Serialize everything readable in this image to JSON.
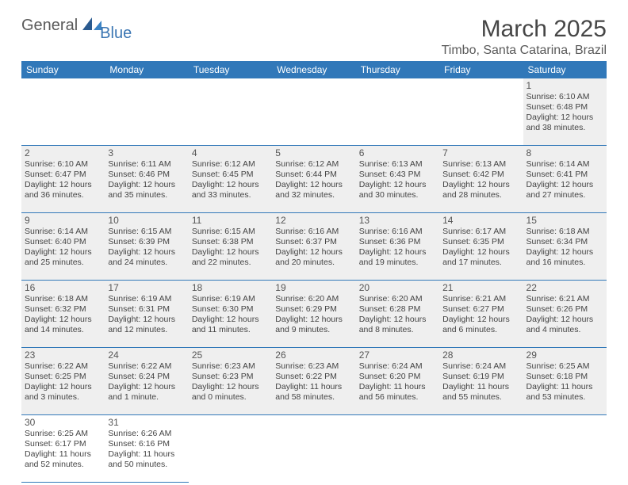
{
  "logo": {
    "general": "General",
    "blue": "Blue"
  },
  "title": "March 2025",
  "location": "Timbo, Santa Catarina, Brazil",
  "colors": {
    "header_bg": "#3178b9",
    "header_text": "#ffffff",
    "shaded_bg": "#efefef",
    "border": "#3178b9",
    "title_text": "#464646",
    "body_text": "#444444"
  },
  "dayHeaders": [
    "Sunday",
    "Monday",
    "Tuesday",
    "Wednesday",
    "Thursday",
    "Friday",
    "Saturday"
  ],
  "weeks": [
    [
      {
        "empty": true
      },
      {
        "empty": true
      },
      {
        "empty": true
      },
      {
        "empty": true
      },
      {
        "empty": true
      },
      {
        "empty": true
      },
      {
        "day": "1",
        "shaded": true,
        "sunrise": "Sunrise: 6:10 AM",
        "sunset": "Sunset: 6:48 PM",
        "daylight": "Daylight: 12 hours and 38 minutes."
      }
    ],
    [
      {
        "day": "2",
        "shaded": true,
        "sunrise": "Sunrise: 6:10 AM",
        "sunset": "Sunset: 6:47 PM",
        "daylight": "Daylight: 12 hours and 36 minutes."
      },
      {
        "day": "3",
        "shaded": true,
        "sunrise": "Sunrise: 6:11 AM",
        "sunset": "Sunset: 6:46 PM",
        "daylight": "Daylight: 12 hours and 35 minutes."
      },
      {
        "day": "4",
        "shaded": true,
        "sunrise": "Sunrise: 6:12 AM",
        "sunset": "Sunset: 6:45 PM",
        "daylight": "Daylight: 12 hours and 33 minutes."
      },
      {
        "day": "5",
        "shaded": true,
        "sunrise": "Sunrise: 6:12 AM",
        "sunset": "Sunset: 6:44 PM",
        "daylight": "Daylight: 12 hours and 32 minutes."
      },
      {
        "day": "6",
        "shaded": true,
        "sunrise": "Sunrise: 6:13 AM",
        "sunset": "Sunset: 6:43 PM",
        "daylight": "Daylight: 12 hours and 30 minutes."
      },
      {
        "day": "7",
        "shaded": true,
        "sunrise": "Sunrise: 6:13 AM",
        "sunset": "Sunset: 6:42 PM",
        "daylight": "Daylight: 12 hours and 28 minutes."
      },
      {
        "day": "8",
        "shaded": true,
        "sunrise": "Sunrise: 6:14 AM",
        "sunset": "Sunset: 6:41 PM",
        "daylight": "Daylight: 12 hours and 27 minutes."
      }
    ],
    [
      {
        "day": "9",
        "shaded": true,
        "sunrise": "Sunrise: 6:14 AM",
        "sunset": "Sunset: 6:40 PM",
        "daylight": "Daylight: 12 hours and 25 minutes."
      },
      {
        "day": "10",
        "shaded": true,
        "sunrise": "Sunrise: 6:15 AM",
        "sunset": "Sunset: 6:39 PM",
        "daylight": "Daylight: 12 hours and 24 minutes."
      },
      {
        "day": "11",
        "shaded": true,
        "sunrise": "Sunrise: 6:15 AM",
        "sunset": "Sunset: 6:38 PM",
        "daylight": "Daylight: 12 hours and 22 minutes."
      },
      {
        "day": "12",
        "shaded": true,
        "sunrise": "Sunrise: 6:16 AM",
        "sunset": "Sunset: 6:37 PM",
        "daylight": "Daylight: 12 hours and 20 minutes."
      },
      {
        "day": "13",
        "shaded": true,
        "sunrise": "Sunrise: 6:16 AM",
        "sunset": "Sunset: 6:36 PM",
        "daylight": "Daylight: 12 hours and 19 minutes."
      },
      {
        "day": "14",
        "shaded": true,
        "sunrise": "Sunrise: 6:17 AM",
        "sunset": "Sunset: 6:35 PM",
        "daylight": "Daylight: 12 hours and 17 minutes."
      },
      {
        "day": "15",
        "shaded": true,
        "sunrise": "Sunrise: 6:18 AM",
        "sunset": "Sunset: 6:34 PM",
        "daylight": "Daylight: 12 hours and 16 minutes."
      }
    ],
    [
      {
        "day": "16",
        "shaded": true,
        "sunrise": "Sunrise: 6:18 AM",
        "sunset": "Sunset: 6:32 PM",
        "daylight": "Daylight: 12 hours and 14 minutes."
      },
      {
        "day": "17",
        "shaded": true,
        "sunrise": "Sunrise: 6:19 AM",
        "sunset": "Sunset: 6:31 PM",
        "daylight": "Daylight: 12 hours and 12 minutes."
      },
      {
        "day": "18",
        "shaded": true,
        "sunrise": "Sunrise: 6:19 AM",
        "sunset": "Sunset: 6:30 PM",
        "daylight": "Daylight: 12 hours and 11 minutes."
      },
      {
        "day": "19",
        "shaded": true,
        "sunrise": "Sunrise: 6:20 AM",
        "sunset": "Sunset: 6:29 PM",
        "daylight": "Daylight: 12 hours and 9 minutes."
      },
      {
        "day": "20",
        "shaded": true,
        "sunrise": "Sunrise: 6:20 AM",
        "sunset": "Sunset: 6:28 PM",
        "daylight": "Daylight: 12 hours and 8 minutes."
      },
      {
        "day": "21",
        "shaded": true,
        "sunrise": "Sunrise: 6:21 AM",
        "sunset": "Sunset: 6:27 PM",
        "daylight": "Daylight: 12 hours and 6 minutes."
      },
      {
        "day": "22",
        "shaded": true,
        "sunrise": "Sunrise: 6:21 AM",
        "sunset": "Sunset: 6:26 PM",
        "daylight": "Daylight: 12 hours and 4 minutes."
      }
    ],
    [
      {
        "day": "23",
        "shaded": true,
        "sunrise": "Sunrise: 6:22 AM",
        "sunset": "Sunset: 6:25 PM",
        "daylight": "Daylight: 12 hours and 3 minutes."
      },
      {
        "day": "24",
        "shaded": true,
        "sunrise": "Sunrise: 6:22 AM",
        "sunset": "Sunset: 6:24 PM",
        "daylight": "Daylight: 12 hours and 1 minute."
      },
      {
        "day": "25",
        "shaded": true,
        "sunrise": "Sunrise: 6:23 AM",
        "sunset": "Sunset: 6:23 PM",
        "daylight": "Daylight: 12 hours and 0 minutes."
      },
      {
        "day": "26",
        "shaded": true,
        "sunrise": "Sunrise: 6:23 AM",
        "sunset": "Sunset: 6:22 PM",
        "daylight": "Daylight: 11 hours and 58 minutes."
      },
      {
        "day": "27",
        "shaded": true,
        "sunrise": "Sunrise: 6:24 AM",
        "sunset": "Sunset: 6:20 PM",
        "daylight": "Daylight: 11 hours and 56 minutes."
      },
      {
        "day": "28",
        "shaded": true,
        "sunrise": "Sunrise: 6:24 AM",
        "sunset": "Sunset: 6:19 PM",
        "daylight": "Daylight: 11 hours and 55 minutes."
      },
      {
        "day": "29",
        "shaded": true,
        "sunrise": "Sunrise: 6:25 AM",
        "sunset": "Sunset: 6:18 PM",
        "daylight": "Daylight: 11 hours and 53 minutes."
      }
    ],
    [
      {
        "day": "30",
        "shaded": false,
        "sunrise": "Sunrise: 6:25 AM",
        "sunset": "Sunset: 6:17 PM",
        "daylight": "Daylight: 11 hours and 52 minutes."
      },
      {
        "day": "31",
        "shaded": false,
        "sunrise": "Sunrise: 6:26 AM",
        "sunset": "Sunset: 6:16 PM",
        "daylight": "Daylight: 11 hours and 50 minutes."
      },
      {
        "empty": true,
        "noborder": true
      },
      {
        "empty": true,
        "noborder": true
      },
      {
        "empty": true,
        "noborder": true
      },
      {
        "empty": true,
        "noborder": true
      },
      {
        "empty": true,
        "noborder": true
      }
    ]
  ]
}
